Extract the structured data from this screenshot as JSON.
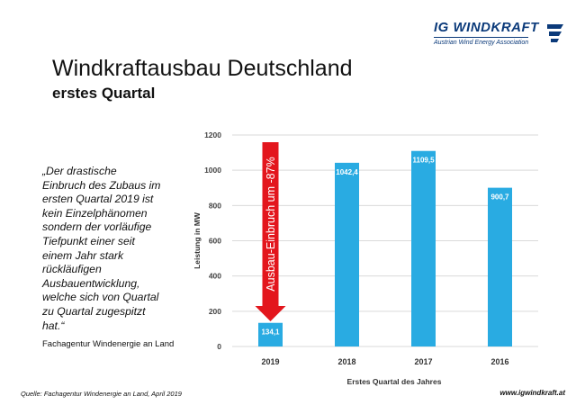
{
  "header": {
    "logo_name": "IG WINDKRAFT",
    "logo_tagline": "Austrian Wind Energy Association",
    "title": "Windkraftausbau Deutschland",
    "subtitle": "erstes Quartal"
  },
  "quote": {
    "lines": [
      "„Der drastische",
      "Einbruch des Zubaus im",
      "ersten Quartal 2019 ist",
      "kein Einzelphänomen",
      "sondern der vorläufige",
      "Tiefpunkt einer seit",
      "einem Jahr stark",
      "rückläufigen",
      "Ausbauentwicklung,",
      "welche sich von Quartal",
      "zu Quartal zugespitzt",
      "hat.“"
    ],
    "source": "Fachagentur Windenergie an Land"
  },
  "footer": {
    "source": "Quelle:  Fachagentur Windenergie an Land, April 2019",
    "website": "www.igwindkraft.at"
  },
  "colors": {
    "bar": "#29abe2",
    "arrow": "#e3161d",
    "grid": "#d9d9d9",
    "logo_blue": "#0b3a7a"
  },
  "chart_data": {
    "type": "bar",
    "categories": [
      "2019",
      "2018",
      "2017",
      "2016"
    ],
    "values": [
      134.1,
      1042.4,
      1109.5,
      900.7
    ],
    "value_labels": [
      "134,1",
      "1042,4",
      "1109,5",
      "900,7"
    ],
    "xlabel": "Erstes Quartal des Jahres",
    "ylabel": "Leistung in MW",
    "ylim": [
      0,
      1200
    ],
    "yticks": [
      0,
      200,
      400,
      600,
      800,
      1000,
      1200
    ],
    "grid": true,
    "annotation": "Ausbau-Einbruch um -87%"
  }
}
